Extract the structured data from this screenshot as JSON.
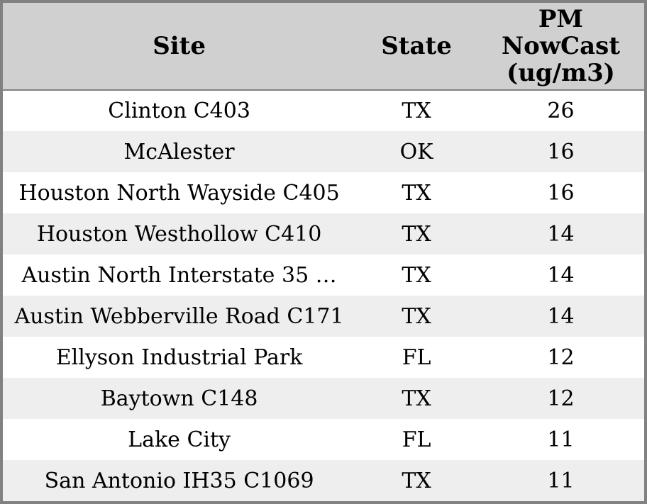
{
  "colors": {
    "header_bg": "#d0d0d0",
    "row_odd_bg": "#eeeeee",
    "row_even_bg": "#ffffff",
    "border": "#818181",
    "text": "#000000"
  },
  "table": {
    "columns": [
      "Site",
      "State",
      "PM NowCast (ug/m3)"
    ],
    "rows": [
      [
        "Clinton C403",
        "TX",
        "26"
      ],
      [
        "McAlester",
        "OK",
        "16"
      ],
      [
        "Houston North Wayside C405",
        "TX",
        "16"
      ],
      [
        "Houston Westhollow C410",
        "TX",
        "14"
      ],
      [
        "Austin North Interstate 35 …",
        "TX",
        "14"
      ],
      [
        "Austin Webberville Road C171",
        "TX",
        "14"
      ],
      [
        "Ellyson Industrial Park",
        "FL",
        "12"
      ],
      [
        "Baytown C148",
        "TX",
        "12"
      ],
      [
        "Lake City",
        "FL",
        "11"
      ],
      [
        "San Antonio IH35 C1069",
        "TX",
        "11"
      ]
    ]
  },
  "chart_data": {
    "type": "table",
    "columns": [
      "Site",
      "State",
      "PM NowCast (ug/m3)"
    ],
    "rows": [
      {
        "site": "Clinton C403",
        "state": "TX",
        "pm_nowcast_ug_m3": 26
      },
      {
        "site": "McAlester",
        "state": "OK",
        "pm_nowcast_ug_m3": 16
      },
      {
        "site": "Houston North Wayside C405",
        "state": "TX",
        "pm_nowcast_ug_m3": 16
      },
      {
        "site": "Houston Westhollow C410",
        "state": "TX",
        "pm_nowcast_ug_m3": 14
      },
      {
        "site": "Austin North Interstate 35 …",
        "state": "TX",
        "pm_nowcast_ug_m3": 14
      },
      {
        "site": "Austin Webberville Road C171",
        "state": "TX",
        "pm_nowcast_ug_m3": 14
      },
      {
        "site": "Ellyson Industrial Park",
        "state": "FL",
        "pm_nowcast_ug_m3": 12
      },
      {
        "site": "Baytown C148",
        "state": "TX",
        "pm_nowcast_ug_m3": 12
      },
      {
        "site": "Lake City",
        "state": "FL",
        "pm_nowcast_ug_m3": 11
      },
      {
        "site": "San Antonio IH35 C1069",
        "state": "TX",
        "pm_nowcast_ug_m3": 11
      }
    ]
  }
}
